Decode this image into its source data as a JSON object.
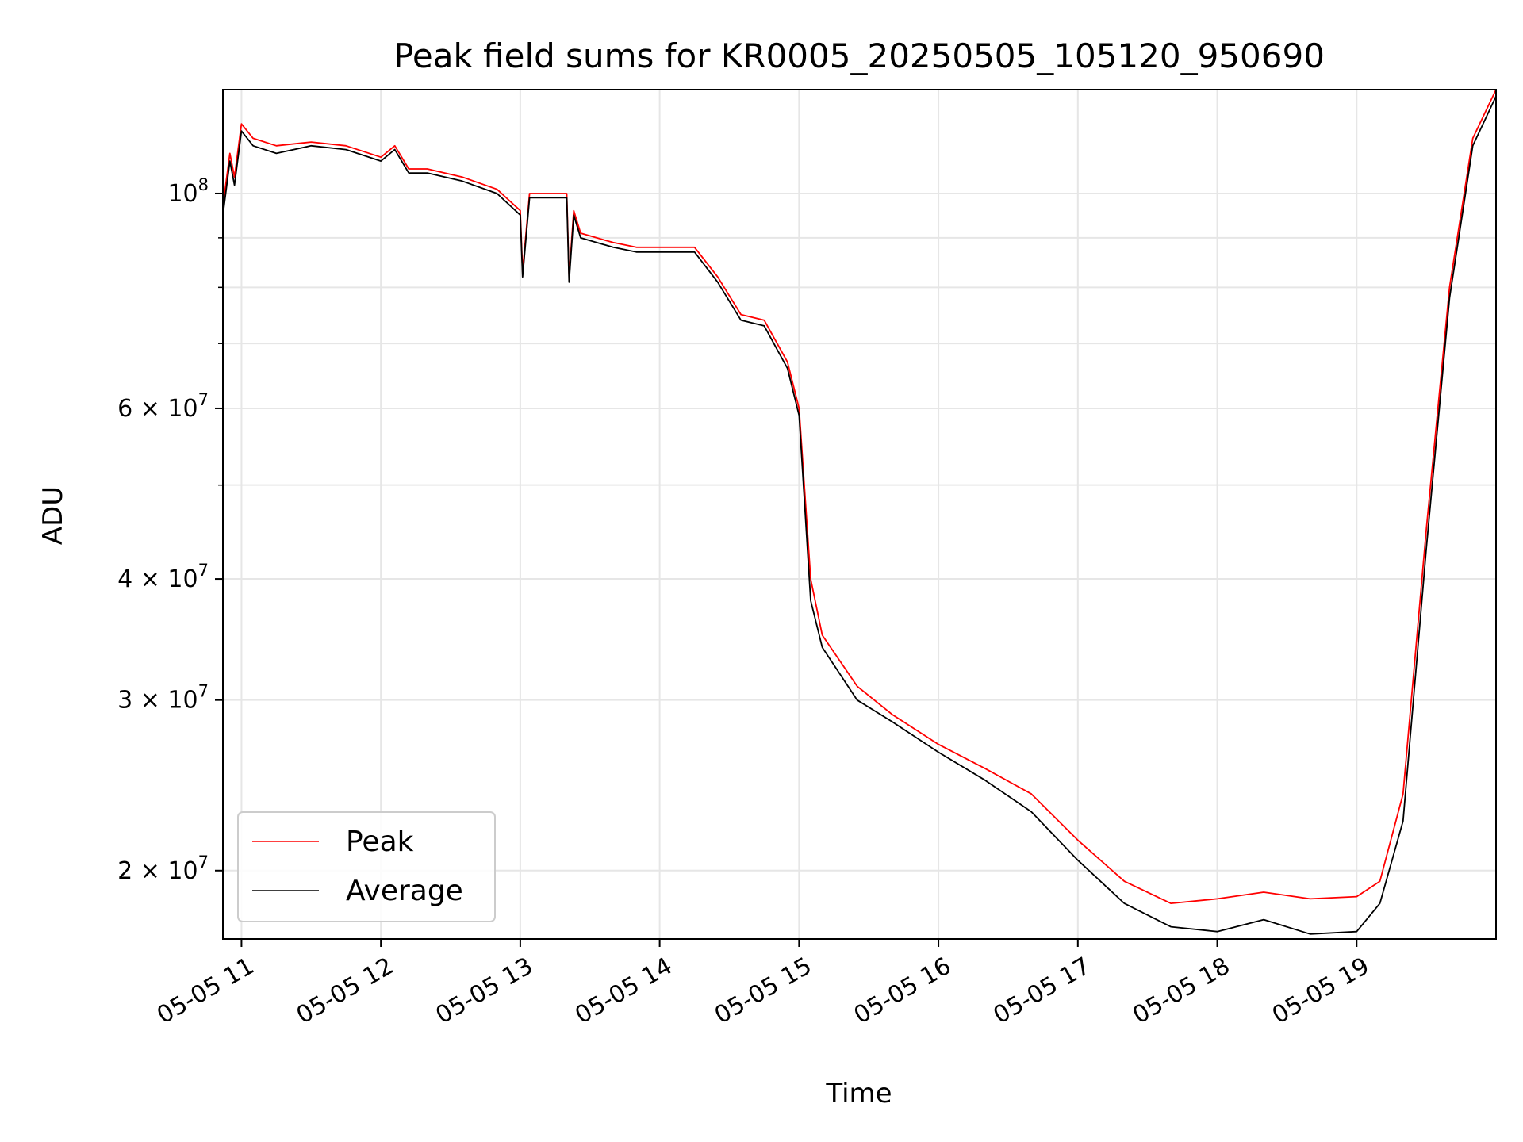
{
  "chart_data": {
    "type": "line",
    "title": "Peak field sums for KR0005_20250505_105120_950690",
    "xlabel": "Time",
    "ylabel": "ADU",
    "y_scale": "log",
    "grid": true,
    "legend_position": "lower-left",
    "xlim": [
      "2025-05-05 10:52",
      "2025-05-05 20:00"
    ],
    "ylim": [
      17000000,
      128000000
    ],
    "x_ticks": [
      "05-05 11",
      "05-05 12",
      "05-05 13",
      "05-05 14",
      "05-05 15",
      "05-05 16",
      "05-05 17",
      "05-05 18",
      "05-05 19"
    ],
    "x_tick_times": [
      "2025-05-05 11:00",
      "2025-05-05 12:00",
      "2025-05-05 13:00",
      "2025-05-05 14:00",
      "2025-05-05 15:00",
      "2025-05-05 16:00",
      "2025-05-05 17:00",
      "2025-05-05 18:00",
      "2025-05-05 19:00"
    ],
    "y_ticks": [
      {
        "value": 100000000,
        "mantissa": "",
        "exponent": "8",
        "base": "10"
      },
      {
        "value": 60000000,
        "mantissa": "6 × ",
        "exponent": "7",
        "base": "10"
      },
      {
        "value": 40000000,
        "mantissa": "4 × ",
        "exponent": "7",
        "base": "10"
      },
      {
        "value": 30000000,
        "mantissa": "3 × ",
        "exponent": "7",
        "base": "10"
      },
      {
        "value": 20000000,
        "mantissa": "2 × ",
        "exponent": "7",
        "base": "10"
      }
    ],
    "y_minor_ticks": [
      50000000,
      70000000,
      80000000,
      90000000
    ],
    "series": [
      {
        "name": "Peak",
        "color": "#ff0000",
        "x": [
          "2025-05-05 10:52",
          "2025-05-05 10:55",
          "2025-05-05 10:57",
          "2025-05-05 11:00",
          "2025-05-05 11:05",
          "2025-05-05 11:15",
          "2025-05-05 11:30",
          "2025-05-05 11:45",
          "2025-05-05 12:00",
          "2025-05-05 12:06",
          "2025-05-05 12:12",
          "2025-05-05 12:20",
          "2025-05-05 12:35",
          "2025-05-05 12:50",
          "2025-05-05 13:00",
          "2025-05-05 13:01",
          "2025-05-05 13:04",
          "2025-05-05 13:06",
          "2025-05-05 13:20",
          "2025-05-05 13:21",
          "2025-05-05 13:23",
          "2025-05-05 13:26",
          "2025-05-05 13:40",
          "2025-05-05 13:50",
          "2025-05-05 14:00",
          "2025-05-05 14:15",
          "2025-05-05 14:25",
          "2025-05-05 14:35",
          "2025-05-05 14:45",
          "2025-05-05 14:55",
          "2025-05-05 15:00",
          "2025-05-05 15:05",
          "2025-05-05 15:10",
          "2025-05-05 15:25",
          "2025-05-05 15:40",
          "2025-05-05 16:00",
          "2025-05-05 16:20",
          "2025-05-05 16:40",
          "2025-05-05 17:00",
          "2025-05-05 17:20",
          "2025-05-05 17:40",
          "2025-05-05 18:00",
          "2025-05-05 18:20",
          "2025-05-05 18:40",
          "2025-05-05 19:00",
          "2025-05-05 19:10",
          "2025-05-05 19:20",
          "2025-05-05 19:30",
          "2025-05-05 19:40",
          "2025-05-05 19:50",
          "2025-05-05 20:00"
        ],
        "values": [
          97000000,
          110000000,
          104000000,
          118000000,
          114000000,
          112000000,
          113000000,
          112000000,
          109000000,
          112000000,
          106000000,
          106000000,
          104000000,
          101000000,
          96000000,
          83000000,
          100000000,
          100000000,
          100000000,
          82000000,
          96000000,
          91000000,
          89000000,
          88000000,
          88000000,
          88000000,
          82000000,
          75000000,
          74000000,
          67000000,
          60000000,
          40000000,
          35000000,
          31000000,
          29000000,
          27000000,
          25500000,
          24000000,
          21500000,
          19500000,
          18500000,
          18700000,
          19000000,
          18700000,
          18800000,
          19500000,
          24000000,
          45000000,
          80000000,
          114000000,
          128000000
        ]
      },
      {
        "name": "Average",
        "color": "#000000",
        "x": [
          "2025-05-05 10:52",
          "2025-05-05 10:55",
          "2025-05-05 10:57",
          "2025-05-05 11:00",
          "2025-05-05 11:05",
          "2025-05-05 11:15",
          "2025-05-05 11:30",
          "2025-05-05 11:45",
          "2025-05-05 12:00",
          "2025-05-05 12:06",
          "2025-05-05 12:12",
          "2025-05-05 12:20",
          "2025-05-05 12:35",
          "2025-05-05 12:50",
          "2025-05-05 13:00",
          "2025-05-05 13:01",
          "2025-05-05 13:04",
          "2025-05-05 13:06",
          "2025-05-05 13:20",
          "2025-05-05 13:21",
          "2025-05-05 13:23",
          "2025-05-05 13:26",
          "2025-05-05 13:40",
          "2025-05-05 13:50",
          "2025-05-05 14:00",
          "2025-05-05 14:15",
          "2025-05-05 14:25",
          "2025-05-05 14:35",
          "2025-05-05 14:45",
          "2025-05-05 14:55",
          "2025-05-05 15:00",
          "2025-05-05 15:05",
          "2025-05-05 15:10",
          "2025-05-05 15:25",
          "2025-05-05 15:40",
          "2025-05-05 16:00",
          "2025-05-05 16:20",
          "2025-05-05 16:40",
          "2025-05-05 17:00",
          "2025-05-05 17:20",
          "2025-05-05 17:40",
          "2025-05-05 18:00",
          "2025-05-05 18:20",
          "2025-05-05 18:40",
          "2025-05-05 19:00",
          "2025-05-05 19:10",
          "2025-05-05 19:20",
          "2025-05-05 19:30",
          "2025-05-05 19:40",
          "2025-05-05 19:50",
          "2025-05-05 20:00"
        ],
        "values": [
          95000000,
          108000000,
          102000000,
          116000000,
          112000000,
          110000000,
          112000000,
          111000000,
          108000000,
          111000000,
          105000000,
          105000000,
          103000000,
          100000000,
          95000000,
          82000000,
          99000000,
          99000000,
          99000000,
          81000000,
          95000000,
          90000000,
          88000000,
          87000000,
          87000000,
          87000000,
          81000000,
          74000000,
          73000000,
          66000000,
          59000000,
          38000000,
          34000000,
          30000000,
          28500000,
          26500000,
          24800000,
          23000000,
          20500000,
          18500000,
          17500000,
          17300000,
          17800000,
          17200000,
          17300000,
          18500000,
          22500000,
          43000000,
          78000000,
          112000000,
          126000000
        ]
      }
    ]
  }
}
